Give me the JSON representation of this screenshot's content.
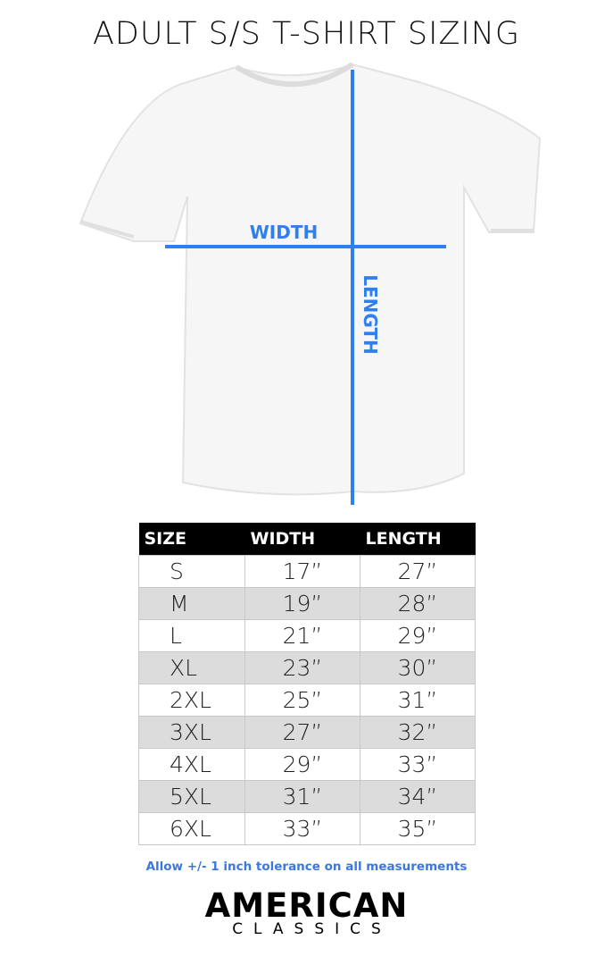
{
  "title": "ADULT S/S T-SHIRT SIZING",
  "diagram": {
    "width_label": "WIDTH",
    "length_label": "LENGTH",
    "accent_color": "#2f7ff0"
  },
  "table": {
    "headers": [
      "SIZE",
      "WIDTH",
      "LENGTH"
    ],
    "rows": [
      [
        "S",
        "17”",
        "27”"
      ],
      [
        "M",
        "19”",
        "28”"
      ],
      [
        "L",
        "21”",
        "29”"
      ],
      [
        "XL",
        "23”",
        "30”"
      ],
      [
        "2XL",
        "25”",
        "31”"
      ],
      [
        "3XL",
        "27”",
        "32”"
      ],
      [
        "4XL",
        "29”",
        "33”"
      ],
      [
        "5XL",
        "31”",
        "34”"
      ],
      [
        "6XL",
        "33”",
        "35”"
      ]
    ]
  },
  "note": "Allow +/- 1 inch tolerance on all measurements",
  "logo": {
    "line1": "AMERICAN",
    "line2": "CLASSICS"
  }
}
